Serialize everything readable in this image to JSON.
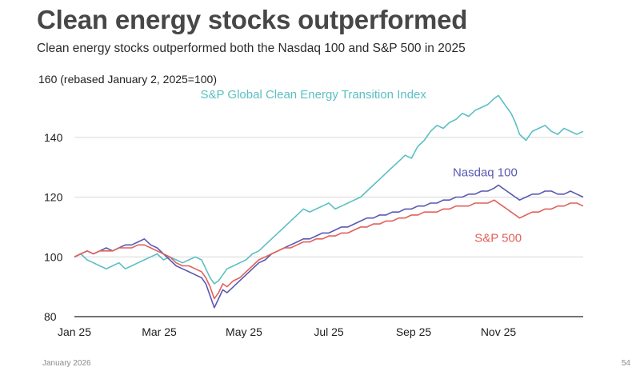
{
  "page": {
    "title": "Clean energy stocks outperformed",
    "subtitle": "Clean energy stocks outperformed both the Nasdaq 100 and S&P 500 in 2025",
    "footer_date": "January 2026",
    "page_number": "54"
  },
  "chart_data": {
    "type": "line",
    "title": "Clean energy stocks outperformed",
    "subtitle": "Clean energy stocks outperformed both the Nasdaq 100 and S&P 500 in 2025",
    "ylabel": "160 (rebased January 2, 2025=100)",
    "xlabel": "",
    "ylim": [
      80,
      160
    ],
    "y_ticks": [
      80,
      100,
      120,
      140
    ],
    "y_top_label": "160 (rebased January 2, 2025=100)",
    "xlim": [
      0,
      12
    ],
    "x_ticks": [
      {
        "value": 0,
        "label": "Jan 25"
      },
      {
        "value": 2,
        "label": "Mar 25"
      },
      {
        "value": 4,
        "label": "May 25"
      },
      {
        "value": 6,
        "label": "Jul 25"
      },
      {
        "value": 8,
        "label": "Sep 25"
      },
      {
        "value": 10,
        "label": "Nov 25"
      }
    ],
    "grid": true,
    "series": [
      {
        "name": "S&P Global Clean Energy Transition Index",
        "color": "#5bbfc3",
        "label_value": [
          8.3,
          153
        ],
        "x": [
          0,
          0.15,
          0.3,
          0.45,
          0.6,
          0.75,
          0.9,
          1.05,
          1.2,
          1.35,
          1.5,
          1.65,
          1.8,
          1.95,
          2.1,
          2.25,
          2.4,
          2.55,
          2.7,
          2.85,
          3.0,
          3.1,
          3.2,
          3.3,
          3.4,
          3.5,
          3.6,
          3.75,
          3.9,
          4.05,
          4.2,
          4.35,
          4.5,
          4.65,
          4.8,
          4.95,
          5.1,
          5.25,
          5.4,
          5.55,
          5.7,
          5.85,
          6.0,
          6.15,
          6.3,
          6.45,
          6.6,
          6.75,
          6.9,
          7.05,
          7.2,
          7.35,
          7.5,
          7.65,
          7.8,
          7.95,
          8.1,
          8.25,
          8.4,
          8.55,
          8.7,
          8.85,
          9.0,
          9.15,
          9.3,
          9.45,
          9.6,
          9.75,
          9.9,
          10.0,
          10.1,
          10.2,
          10.3,
          10.4,
          10.5,
          10.65,
          10.8,
          10.95,
          11.1,
          11.25,
          11.4,
          11.55,
          11.7,
          11.85,
          12.0
        ],
        "values": [
          100,
          101,
          99,
          98,
          97,
          96,
          97,
          98,
          96,
          97,
          98,
          99,
          100,
          101,
          99,
          100,
          99,
          98,
          99,
          100,
          99,
          96,
          93,
          91,
          92,
          94,
          96,
          97,
          98,
          99,
          101,
          102,
          104,
          106,
          108,
          110,
          112,
          114,
          116,
          115,
          116,
          117,
          118,
          116,
          117,
          118,
          119,
          120,
          122,
          124,
          126,
          128,
          130,
          132,
          134,
          133,
          137,
          139,
          142,
          144,
          143,
          145,
          146,
          148,
          147,
          149,
          150,
          151,
          153,
          154,
          152,
          150,
          148,
          145,
          141,
          139,
          142,
          143,
          144,
          142,
          141,
          143,
          142,
          141,
          142
        ]
      },
      {
        "name": "Nasdaq 100",
        "color": "#5959b3",
        "label_value": [
          10.45,
          127
        ],
        "x": [
          0,
          0.15,
          0.3,
          0.45,
          0.6,
          0.75,
          0.9,
          1.05,
          1.2,
          1.35,
          1.5,
          1.65,
          1.8,
          1.95,
          2.1,
          2.25,
          2.4,
          2.55,
          2.7,
          2.85,
          3.0,
          3.1,
          3.2,
          3.3,
          3.4,
          3.5,
          3.6,
          3.75,
          3.9,
          4.05,
          4.2,
          4.35,
          4.5,
          4.65,
          4.8,
          4.95,
          5.1,
          5.25,
          5.4,
          5.55,
          5.7,
          5.85,
          6.0,
          6.15,
          6.3,
          6.45,
          6.6,
          6.75,
          6.9,
          7.05,
          7.2,
          7.35,
          7.5,
          7.65,
          7.8,
          7.95,
          8.1,
          8.25,
          8.4,
          8.55,
          8.7,
          8.85,
          9.0,
          9.15,
          9.3,
          9.45,
          9.6,
          9.75,
          9.9,
          10.0,
          10.1,
          10.2,
          10.3,
          10.4,
          10.5,
          10.65,
          10.8,
          10.95,
          11.1,
          11.25,
          11.4,
          11.55,
          11.7,
          11.85,
          12.0
        ],
        "values": [
          100,
          101,
          102,
          101,
          102,
          103,
          102,
          103,
          104,
          104,
          105,
          106,
          104,
          103,
          101,
          99,
          97,
          96,
          95,
          94,
          93,
          91,
          87,
          83,
          86,
          89,
          88,
          90,
          92,
          94,
          96,
          98,
          99,
          101,
          102,
          103,
          104,
          105,
          106,
          106,
          107,
          108,
          108,
          109,
          110,
          110,
          111,
          112,
          113,
          113,
          114,
          114,
          115,
          115,
          116,
          116,
          117,
          117,
          118,
          118,
          119,
          119,
          120,
          120,
          121,
          121,
          122,
          122,
          123,
          124,
          123,
          122,
          121,
          120,
          119,
          120,
          121,
          121,
          122,
          122,
          121,
          121,
          122,
          121,
          120
        ]
      },
      {
        "name": "S&P 500",
        "color": "#e0615a",
        "label_value": [
          10.55,
          105
        ],
        "x": [
          0,
          0.15,
          0.3,
          0.45,
          0.6,
          0.75,
          0.9,
          1.05,
          1.2,
          1.35,
          1.5,
          1.65,
          1.8,
          1.95,
          2.1,
          2.25,
          2.4,
          2.55,
          2.7,
          2.85,
          3.0,
          3.1,
          3.2,
          3.3,
          3.4,
          3.5,
          3.6,
          3.75,
          3.9,
          4.05,
          4.2,
          4.35,
          4.5,
          4.65,
          4.8,
          4.95,
          5.1,
          5.25,
          5.4,
          5.55,
          5.7,
          5.85,
          6.0,
          6.15,
          6.3,
          6.45,
          6.6,
          6.75,
          6.9,
          7.05,
          7.2,
          7.35,
          7.5,
          7.65,
          7.8,
          7.95,
          8.1,
          8.25,
          8.4,
          8.55,
          8.7,
          8.85,
          9.0,
          9.15,
          9.3,
          9.45,
          9.6,
          9.75,
          9.9,
          10.0,
          10.1,
          10.2,
          10.3,
          10.4,
          10.5,
          10.65,
          10.8,
          10.95,
          11.1,
          11.25,
          11.4,
          11.55,
          11.7,
          11.85,
          12.0
        ],
        "values": [
          100,
          101,
          102,
          101,
          102,
          102,
          102,
          103,
          103,
          103,
          104,
          104,
          103,
          102,
          101,
          100,
          98,
          97,
          97,
          96,
          95,
          93,
          90,
          86,
          88,
          91,
          90,
          92,
          93,
          95,
          97,
          99,
          100,
          101,
          102,
          103,
          103,
          104,
          105,
          105,
          106,
          106,
          107,
          107,
          108,
          108,
          109,
          110,
          110,
          111,
          111,
          112,
          112,
          113,
          113,
          114,
          114,
          115,
          115,
          115,
          116,
          116,
          117,
          117,
          117,
          118,
          118,
          118,
          119,
          118,
          117,
          116,
          115,
          114,
          113,
          114,
          115,
          115,
          116,
          116,
          117,
          117,
          118,
          118,
          117
        ]
      }
    ]
  }
}
